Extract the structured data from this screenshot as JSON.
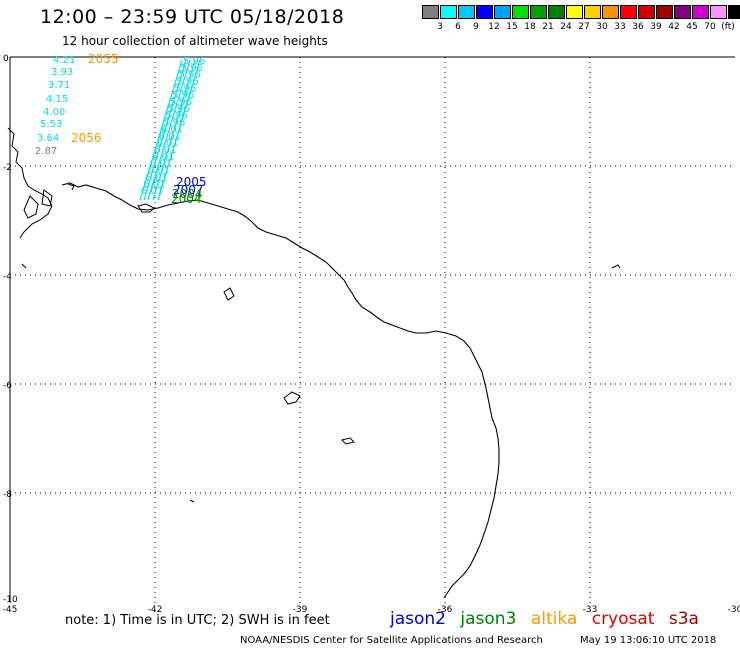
{
  "title": "12:00 – 23:59 UTC 05/18/2018",
  "subtitle": "12 hour collection of altimeter wave heights",
  "legend": {
    "colors": [
      "#808080",
      "#00ffff",
      "#00c8ff",
      "#0000ff",
      "#00a0ff",
      "#00e000",
      "#00a000",
      "#008000",
      "#ffff00",
      "#ffd000",
      "#ff9000",
      "#ff0000",
      "#d00000",
      "#a00000",
      "#800080",
      "#d000d0",
      "#ff90ff",
      "#000000"
    ],
    "labels": [
      "3",
      "6",
      "9",
      "12",
      "15",
      "18",
      "21",
      "24",
      "27",
      "30",
      "33",
      "36",
      "39",
      "42",
      "45",
      "70",
      "(ft)"
    ]
  },
  "axes": {
    "x_ticks": [
      "-45",
      "-42",
      "-39",
      "-36",
      "-33",
      "-30"
    ],
    "y_ticks": [
      "0",
      "-2",
      "-4",
      "-6",
      "-8",
      "-10"
    ]
  },
  "wave_labels": {
    "left_track": [
      "4.21",
      "3.93",
      "3.71",
      "4.15",
      "4.00",
      "5.53",
      "3.64",
      "2.87"
    ],
    "right_track": [
      "5.96",
      "5.96",
      "5.96",
      "5.96",
      "5.96",
      "5.96",
      "5.96",
      "5.96",
      "5.96",
      "5.96",
      "6.01",
      "6.01",
      "6.01",
      "6.01",
      "6.01",
      "6.01",
      "6.01",
      "6.01",
      "6.01",
      "6.01"
    ]
  },
  "pass_times": {
    "altika_1": "2055",
    "altika_2": "2056",
    "jason2": "2005",
    "jason3": "2004"
  },
  "colors": {
    "wave_cyan": "#00e0e8",
    "altika": "#ff9900",
    "jason2": "#0000cc",
    "jason3": "#008000",
    "cryosat": "#e00000",
    "s3a": "#a00000",
    "grey_label": "#808080"
  },
  "note": "note: 1) Time is in UTC; 2) SWH is in feet",
  "satellites": [
    "jason2",
    "jason3",
    "altika",
    "cryosat",
    "s3a"
  ],
  "credit": "NOAA/NESDIS Center for Satellite Applications and Research",
  "timestamp": "May 19 13:06:10 UTC 2018"
}
